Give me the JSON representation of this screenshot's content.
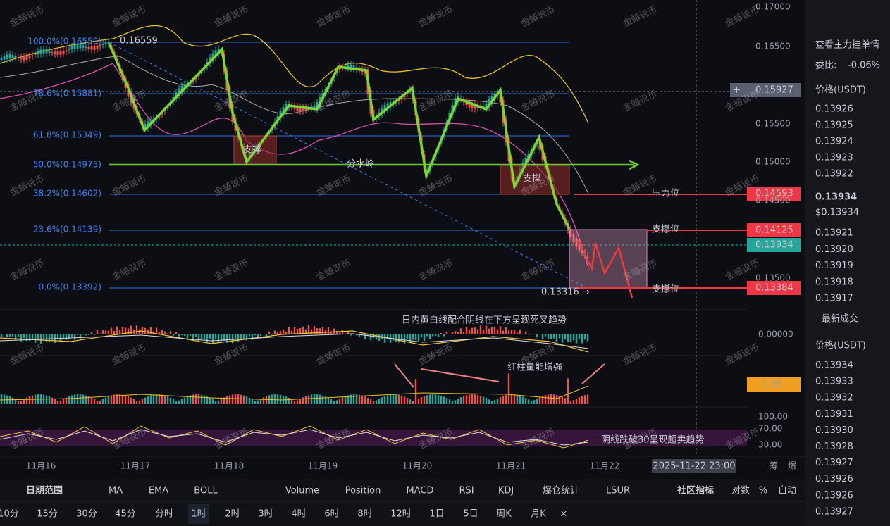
{
  "watermark": "金蝽说币",
  "price_axis": [
    "0.17000",
    "0.16500",
    "0.15500",
    "0.15000",
    "0.14500",
    "0.13500"
  ],
  "price_boxes": [
    {
      "label": "0.15927"
    },
    {
      "label": "0.14593"
    },
    {
      "label": "0.14125"
    },
    {
      "label": "0.13934"
    },
    {
      "label": "0.13384"
    }
  ],
  "indicator_axis": [
    "0.00000",
    "1.3B",
    "100.00",
    "70.00",
    "30.00"
  ],
  "fib_levels": [
    "100.0%(0.16559)",
    "78.6%(0.15881)",
    "61.8%(0.15349)",
    "50.0%(0.14975)",
    "38.2%(0.14602)",
    "23.6%(0.14139)",
    "0.0%(0.13392)"
  ],
  "annotations": {
    "high": "0.16559",
    "low": "0.13316 →",
    "support_box_1": "支撑",
    "support_box_2": "支撑",
    "divide": "分水岭",
    "resistance": "压力位",
    "support_1": "支撑位",
    "support_2": "支撑位",
    "macd_note": "日内黄白线配合阴线在下方呈现死叉趋势",
    "volume_note": "红柱量能增强",
    "rsi_note": "阴线跌破30呈现超卖趋势"
  },
  "x_axis": [
    "11月16",
    "11月17",
    "11月18",
    "11月19",
    "11月20",
    "11月21",
    "11月22"
  ],
  "cursor_time": "2025-11-22 23:00",
  "side_icons": [
    "筹",
    "爆"
  ],
  "toolbar": {
    "indicators": [
      "日期范围",
      "MA",
      "EMA",
      "BOLL",
      "Volume",
      "Position",
      "MACD",
      "RSI",
      "KDJ",
      "爆仓统计",
      "LSUR",
      "社区指标",
      "对数",
      "%",
      "自动"
    ],
    "intervals": [
      "10分",
      "15分",
      "30分",
      "45分",
      "分时",
      "1时",
      "2时",
      "3时",
      "4时",
      "6时",
      "8时",
      "12时",
      "1日",
      "5日",
      "周K",
      "月K",
      "×"
    ]
  },
  "order_book": {
    "title": "查看主力挂单情",
    "ratio_label": "委比:",
    "ratio": "-0.06%",
    "price_header": "价格(USDT)",
    "asks": [
      "0.13926",
      "0.13925",
      "0.13924",
      "0.13923",
      "0.13922"
    ],
    "last": "0.13934",
    "last_usd": "$0.13934",
    "bids": [
      "0.13921",
      "0.13920",
      "0.13919",
      "0.13918",
      "0.13917"
    ]
  },
  "trades": {
    "title": "最新成交",
    "price_header": "价格(USDT)",
    "prices": [
      "0.13934",
      "0.13933",
      "0.13932",
      "0.13931",
      "0.13930",
      "0.13928",
      "0.13927",
      "0.13926",
      "0.13926",
      "0.13927"
    ]
  }
}
